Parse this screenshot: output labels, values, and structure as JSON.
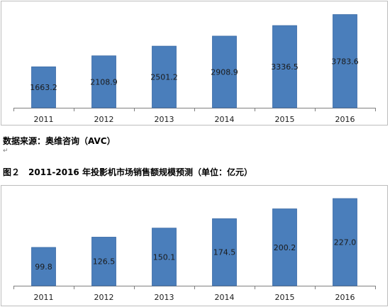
{
  "source_note": "数据来源：奥维咨询（AVC）",
  "figure_caption": "图２　2011-2016 年投影机市场销售额规模预测（单位：亿元）",
  "para_mark": "↵",
  "colors": {
    "bar": "#4a7ebb",
    "bar_edge": "#3a6aa5",
    "axis": "#7f7f7f",
    "frame": "#bdbdbd"
  },
  "chart_data": [
    {
      "type": "bar",
      "categories": [
        "2011",
        "2012",
        "2013",
        "2014",
        "2015",
        "2016"
      ],
      "values": [
        1663.2,
        2108.9,
        2501.2,
        2908.9,
        3336.5,
        3783.6
      ],
      "value_labels": [
        "1663.2",
        "2108.9",
        "2501.2",
        "2908.9",
        "3336.5",
        "3783.6"
      ],
      "ylim": [
        0,
        4000
      ],
      "grid": false,
      "legend": "none"
    },
    {
      "type": "bar",
      "categories": [
        "2011",
        "2012",
        "2013",
        "2014",
        "2015",
        "2016"
      ],
      "values": [
        99.8,
        126.5,
        150.1,
        174.5,
        200.2,
        227.0
      ],
      "value_labels": [
        "99.8",
        "126.5",
        "150.1",
        "174.5",
        "200.2",
        "227.0"
      ],
      "ylim": [
        0,
        240
      ],
      "grid": false,
      "legend": "none"
    }
  ]
}
